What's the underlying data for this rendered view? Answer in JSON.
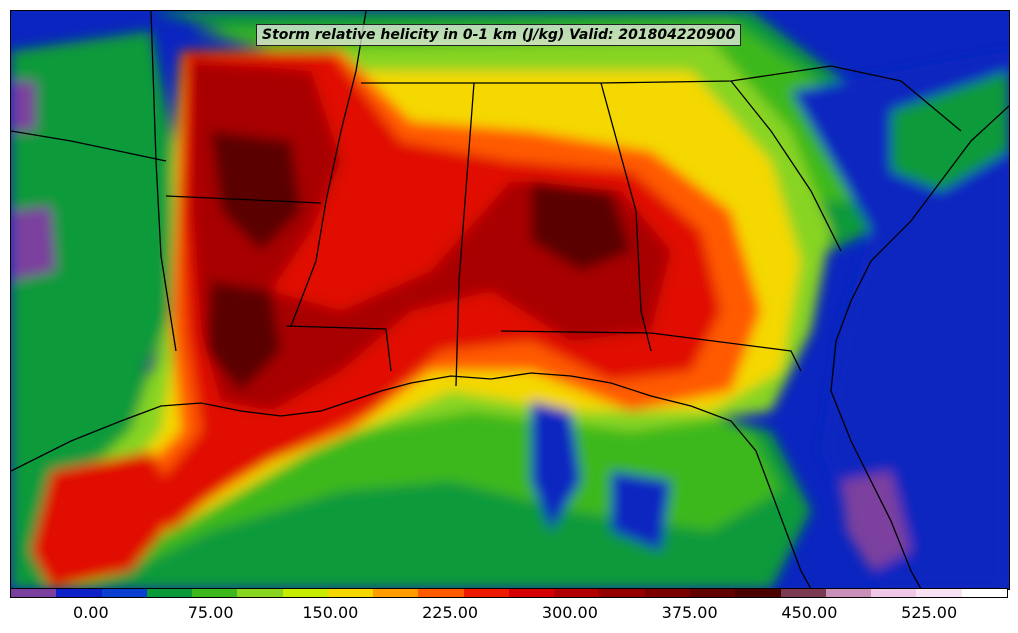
{
  "title": "Storm relative helicity in 0-1 km (J/kg) Valid: 201804220900",
  "colorbar": {
    "colors": [
      "#7b3f9e",
      "#0f22c8",
      "#0a3fd0",
      "#0a9a3a",
      "#3cb81c",
      "#88d420",
      "#c8ec00",
      "#f4d800",
      "#ff9c00",
      "#ff5a00",
      "#ee1a00",
      "#d40000",
      "#b00000",
      "#940000",
      "#7a0000",
      "#600000",
      "#4a0000",
      "#7a3a52",
      "#c890b8",
      "#efc8e8",
      "#f8e2f4",
      "#ffffff"
    ],
    "ticks": [
      {
        "label": "0.00",
        "pos": 0.081
      },
      {
        "label": "75.00",
        "pos": 0.201
      },
      {
        "label": "150.00",
        "pos": 0.321
      },
      {
        "label": "225.00",
        "pos": 0.441
      },
      {
        "label": "300.00",
        "pos": 0.561
      },
      {
        "label": "375.00",
        "pos": 0.681
      },
      {
        "label": "450.00",
        "pos": 0.801
      },
      {
        "label": "525.00",
        "pos": 0.921
      }
    ]
  },
  "legend_units": "J/kg"
}
